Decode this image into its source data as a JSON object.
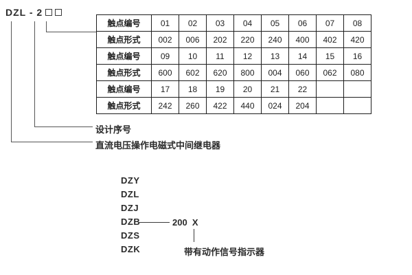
{
  "model": {
    "code": "DZL - 2",
    "placeholder_boxes": 2
  },
  "table": {
    "rows": [
      {
        "header": "触点编号",
        "cells": [
          "01",
          "02",
          "03",
          "04",
          "05",
          "06",
          "07",
          "08"
        ]
      },
      {
        "header": "触点形式",
        "cells": [
          "002",
          "006",
          "202",
          "220",
          "240",
          "400",
          "402",
          "420"
        ]
      },
      {
        "header": "触点编号",
        "cells": [
          "09",
          "10",
          "11",
          "12",
          "13",
          "14",
          "15",
          "16"
        ]
      },
      {
        "header": "触点形式",
        "cells": [
          "600",
          "602",
          "620",
          "800",
          "004",
          "060",
          "062",
          "080"
        ]
      },
      {
        "header": "触点编号",
        "cells": [
          "17",
          "18",
          "19",
          "20",
          "21",
          "22",
          "",
          ""
        ]
      },
      {
        "header": "触点形式",
        "cells": [
          "242",
          "260",
          "422",
          "440",
          "024",
          "204",
          "",
          ""
        ]
      }
    ]
  },
  "callouts": {
    "design_serial": "设计序号",
    "relay_description": "直流电压操作电磁式中间继电器"
  },
  "series": {
    "items": [
      "DZY",
      "DZL",
      "DZJ",
      "DZB",
      "DZS",
      "DZK"
    ],
    "dzb_suffix": "200  X",
    "indicator_note": "带有动作信号指示器"
  },
  "colors": {
    "text": "#2a2a2a",
    "table_border": "#1c1c1c",
    "connector_line": "#555555",
    "background": "#ffffff"
  }
}
